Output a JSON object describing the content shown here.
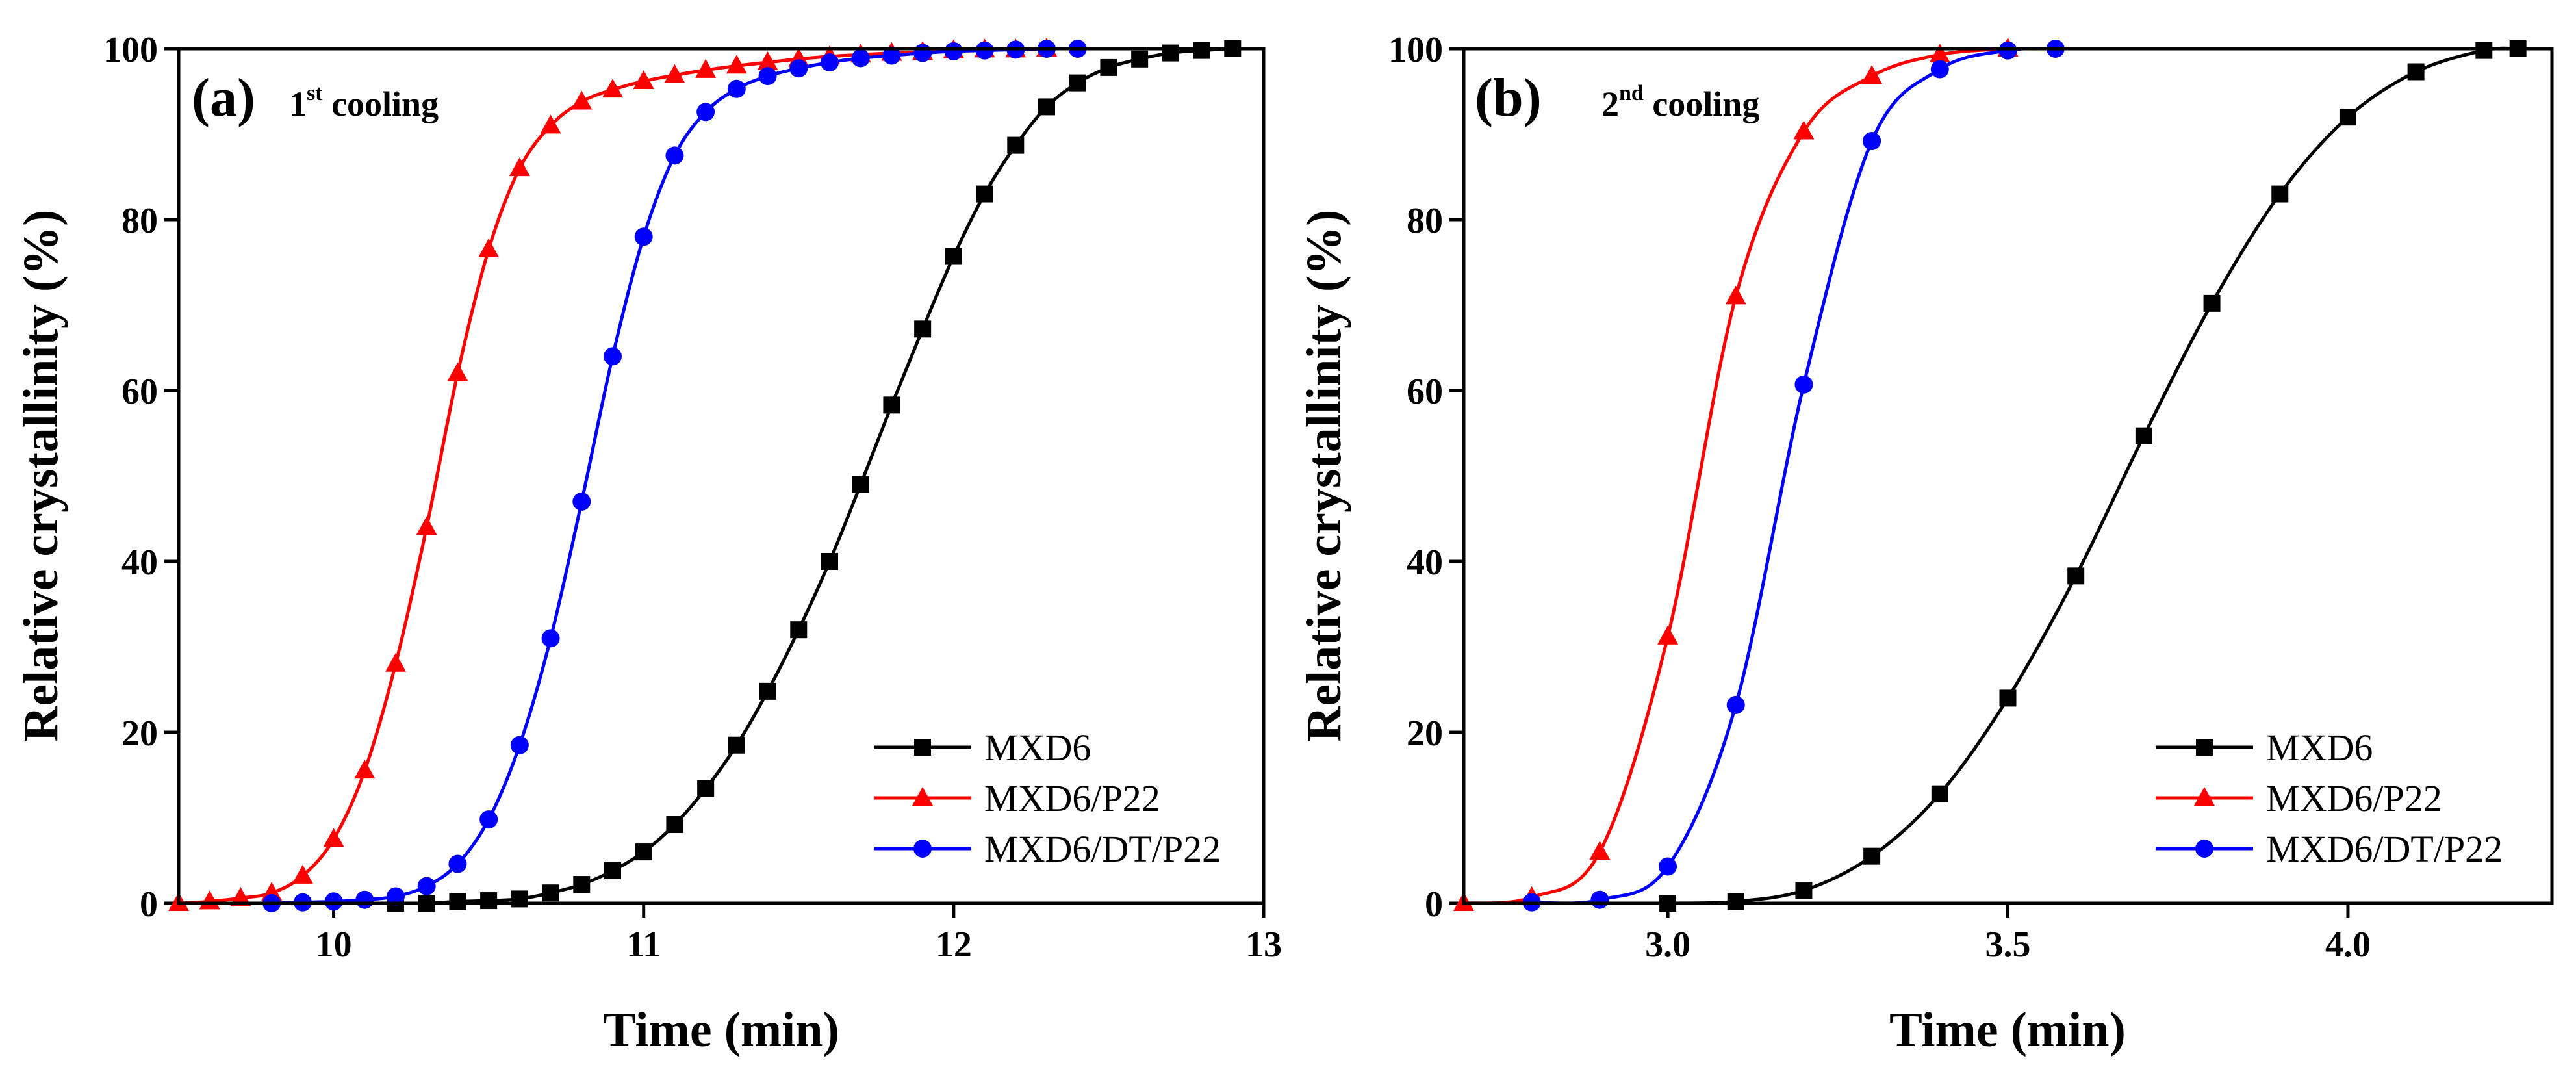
{
  "chart_data": [
    {
      "type": "line",
      "panel_label": "(a)",
      "title_main": "1",
      "title_sup": "st",
      "title_rest": " cooling",
      "xlabel": "Time (min)",
      "ylabel": "Relative crystallinity (%)",
      "xlim": [
        9.5,
        13
      ],
      "ylim": [
        0,
        100
      ],
      "xticks": [
        10,
        11,
        12,
        13
      ],
      "xtick_labels": [
        "10",
        "11",
        "12",
        "13"
      ],
      "yticks": [
        0,
        20,
        40,
        60,
        80,
        100
      ],
      "ytick_labels": [
        "0",
        "20",
        "40",
        "60",
        "80",
        "100"
      ],
      "legend_position": "lower-right",
      "series": [
        {
          "name": "MXD6",
          "color": "#000000",
          "marker": "square",
          "x": [
            10.2,
            10.3,
            10.4,
            10.5,
            10.6,
            10.7,
            10.8,
            10.9,
            11.0,
            11.1,
            11.2,
            11.3,
            11.4,
            11.5,
            11.6,
            11.7,
            11.8,
            11.9,
            12.0,
            12.1,
            12.2,
            12.3,
            12.4,
            12.5,
            12.6,
            12.7,
            12.8,
            12.9
          ],
          "y": [
            0,
            0,
            0.2,
            0.3,
            0.5,
            1.2,
            2.2,
            3.8,
            6.0,
            9.2,
            13.4,
            18.5,
            24.8,
            32.0,
            40.0,
            49.0,
            58.3,
            67.2,
            75.7,
            83.0,
            88.7,
            93.2,
            96.0,
            97.8,
            98.8,
            99.5,
            99.8,
            100
          ]
        },
        {
          "name": "MXD6/P22",
          "color": "#ff0000",
          "marker": "triangle",
          "x": [
            9.5,
            9.6,
            9.7,
            9.8,
            9.9,
            10.0,
            10.1,
            10.2,
            10.3,
            10.4,
            10.5,
            10.6,
            10.7,
            10.8,
            10.9,
            11.0,
            11.1,
            11.2,
            11.3,
            11.4,
            11.5,
            11.6,
            11.7,
            11.8,
            11.9,
            12.0,
            12.1,
            12.2,
            12.3
          ],
          "y": [
            0,
            0.2,
            0.6,
            1.2,
            3.2,
            7.5,
            15.5,
            28.0,
            44.0,
            62.0,
            76.5,
            86.0,
            91.0,
            93.8,
            95.2,
            96.2,
            96.9,
            97.5,
            98.0,
            98.4,
            98.8,
            99.1,
            99.3,
            99.5,
            99.6,
            99.8,
            99.9,
            99.9,
            100
          ]
        },
        {
          "name": "MXD6/DT/P22",
          "color": "#0000ff",
          "marker": "circle",
          "x": [
            9.8,
            9.9,
            10.0,
            10.1,
            10.2,
            10.3,
            10.4,
            10.5,
            10.6,
            10.7,
            10.8,
            10.9,
            11.0,
            11.1,
            11.2,
            11.3,
            11.4,
            11.5,
            11.6,
            11.7,
            11.8,
            11.9,
            12.0,
            12.1,
            12.2,
            12.3,
            12.4
          ],
          "y": [
            0,
            0.1,
            0.2,
            0.4,
            0.8,
            2.0,
            4.6,
            9.8,
            18.5,
            31.0,
            47.0,
            64.0,
            78.0,
            87.5,
            92.6,
            95.3,
            96.8,
            97.7,
            98.4,
            98.9,
            99.2,
            99.5,
            99.7,
            99.8,
            99.9,
            100,
            100
          ]
        }
      ]
    },
    {
      "type": "line",
      "panel_label": "(b)",
      "title_main": "2",
      "title_sup": "nd",
      "title_rest": " cooling",
      "xlabel": "Time (min)",
      "ylabel": "Relative crystallinity (%)",
      "xlim": [
        2.7,
        4.3
      ],
      "ylim": [
        0,
        100
      ],
      "xticks": [
        3.0,
        3.5,
        4.0
      ],
      "xtick_labels": [
        "3.0",
        "3.5",
        "4.0"
      ],
      "yticks": [
        0,
        20,
        40,
        60,
        80,
        100
      ],
      "ytick_labels": [
        "0",
        "20",
        "40",
        "60",
        "80",
        "100"
      ],
      "legend_position": "lower-right",
      "series": [
        {
          "name": "MXD6",
          "color": "#000000",
          "marker": "square",
          "x": [
            3.0,
            3.1,
            3.2,
            3.3,
            3.4,
            3.5,
            3.6,
            3.7,
            3.8,
            3.9,
            4.0,
            4.1,
            4.2,
            4.25
          ],
          "y": [
            0,
            0.2,
            1.5,
            5.5,
            12.8,
            24.0,
            38.3,
            54.7,
            70.2,
            83.0,
            92.0,
            97.3,
            99.8,
            100
          ]
        },
        {
          "name": "MXD6/P22",
          "color": "#ff0000",
          "marker": "triangle",
          "x": [
            2.7,
            2.8,
            2.9,
            3.0,
            3.1,
            3.2,
            3.3,
            3.4,
            3.5
          ],
          "y": [
            0,
            0.7,
            6.0,
            31.2,
            71.0,
            90.3,
            96.8,
            99.3,
            100
          ]
        },
        {
          "name": "MXD6/DT/P22",
          "color": "#0000ff",
          "marker": "circle",
          "x": [
            2.8,
            2.9,
            3.0,
            3.1,
            3.2,
            3.3,
            3.4,
            3.5,
            3.57
          ],
          "y": [
            0.1,
            0.4,
            4.3,
            23.2,
            60.7,
            89.2,
            97.6,
            99.8,
            100
          ]
        }
      ]
    }
  ]
}
